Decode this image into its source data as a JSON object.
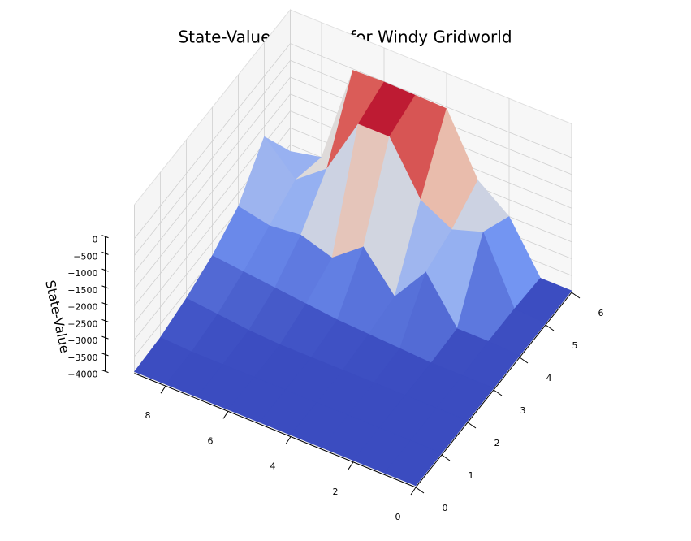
{
  "chart_data": {
    "type": "surface",
    "title": "State-Value Function for Windy Gridworld",
    "zlabel": "State-Value",
    "x": [
      0,
      1,
      2,
      3,
      4,
      5,
      6,
      7,
      8,
      9
    ],
    "y": [
      0,
      1,
      2,
      3,
      4,
      5,
      6
    ],
    "values": [
      [
        -3950,
        -3950,
        -3950,
        -3950,
        -3950,
        -3950,
        -3950,
        -3950,
        -3950,
        -3950
      ],
      [
        -3950,
        -3950,
        -3950,
        -3950,
        -3950,
        -3950,
        -3950,
        -3950,
        -3950,
        -3900
      ],
      [
        -3950,
        -3950,
        -3950,
        -3950,
        -3950,
        -3950,
        -3950,
        -3900,
        -3800,
        -3700
      ],
      [
        -3950,
        -3950,
        -3950,
        -3900,
        -3850,
        -3800,
        -3700,
        -3600,
        -3500,
        -3400
      ],
      [
        -3950,
        -3900,
        -3900,
        -2600,
        -3700,
        -2600,
        -3300,
        -3000,
        -3100,
        -2900
      ],
      [
        -3950,
        -3900,
        -2000,
        -2300,
        -1800,
        -300,
        -300,
        -2000,
        -2700,
        -1800
      ],
      [
        -3950,
        -3950,
        -2500,
        -1800,
        -50,
        -30,
        -10,
        -40,
        -3000,
        -3200
      ]
    ],
    "xlim": [
      0,
      9
    ],
    "ylim": [
      0,
      6
    ],
    "zlim": [
      -4000,
      0
    ],
    "xticks": [
      0,
      2,
      4,
      6,
      8
    ],
    "yticks": [
      0,
      1,
      2,
      3,
      4,
      5,
      6
    ],
    "zticks": [
      0,
      {
        "value": -500,
        "label": "−500"
      },
      {
        "value": -1000,
        "label": "−1000"
      },
      {
        "value": -1500,
        "label": "−1500"
      },
      {
        "value": -2000,
        "label": "−2000"
      },
      {
        "value": -2500,
        "label": "−2500"
      },
      {
        "value": -3000,
        "label": "−3000"
      },
      {
        "value": -3500,
        "label": "−3500"
      },
      {
        "value": -4000,
        "label": "−4000"
      }
    ],
    "colormap": "coolwarm",
    "grid": true
  }
}
